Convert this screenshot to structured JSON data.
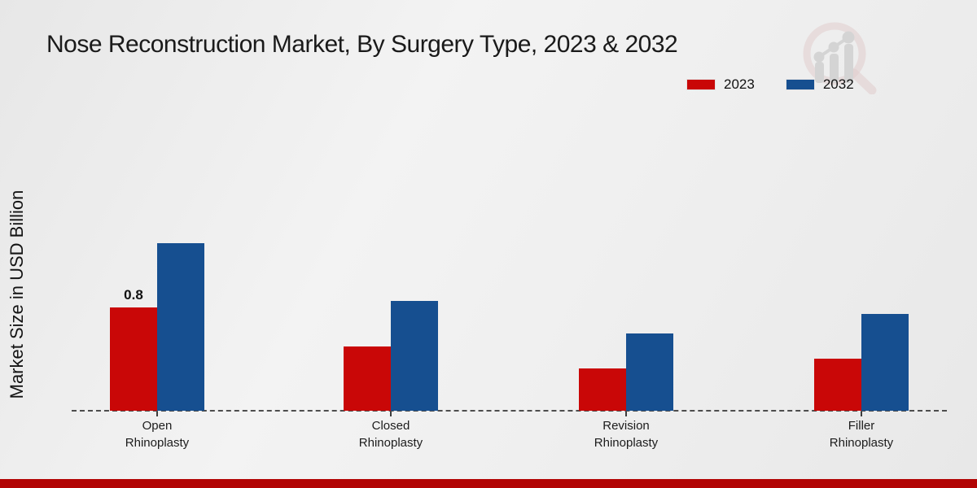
{
  "title": "Nose Reconstruction Market, By Surgery Type, 2023 & 2032",
  "y_axis_label": "Market Size in USD Billion",
  "legend": {
    "items": [
      {
        "label": "2023",
        "color": "#c90707"
      },
      {
        "label": "2032",
        "color": "#164f90"
      }
    ]
  },
  "colors": {
    "series_2023": "#c90707",
    "series_2032": "#164f90",
    "footer_bar": "#b20404",
    "baseline": "#4d4d4d"
  },
  "watermark": {
    "icon": "magnifier-growth-chart-logo"
  },
  "chart_data": {
    "type": "bar",
    "categories": [
      [
        "Open",
        "Rhinoplasty"
      ],
      [
        "Closed",
        "Rhinoplasty"
      ],
      [
        "Revision",
        "Rhinoplasty"
      ],
      [
        "Filler",
        "Rhinoplasty"
      ]
    ],
    "series": [
      {
        "name": "2023",
        "color": "#c90707",
        "values": [
          0.8,
          0.5,
          0.33,
          0.4
        ]
      },
      {
        "name": "2032",
        "color": "#164f90",
        "values": [
          1.3,
          0.85,
          0.6,
          0.75
        ]
      }
    ],
    "data_labels": [
      "0.8"
    ],
    "title": "Nose Reconstruction Market, By Surgery Type, 2023 & 2032",
    "xlabel": "",
    "ylabel": "Market Size in USD Billion",
    "ylim": [
      0,
      1.5
    ],
    "grid": false,
    "baseline_style": "dashed",
    "legend_position": "top-right"
  }
}
